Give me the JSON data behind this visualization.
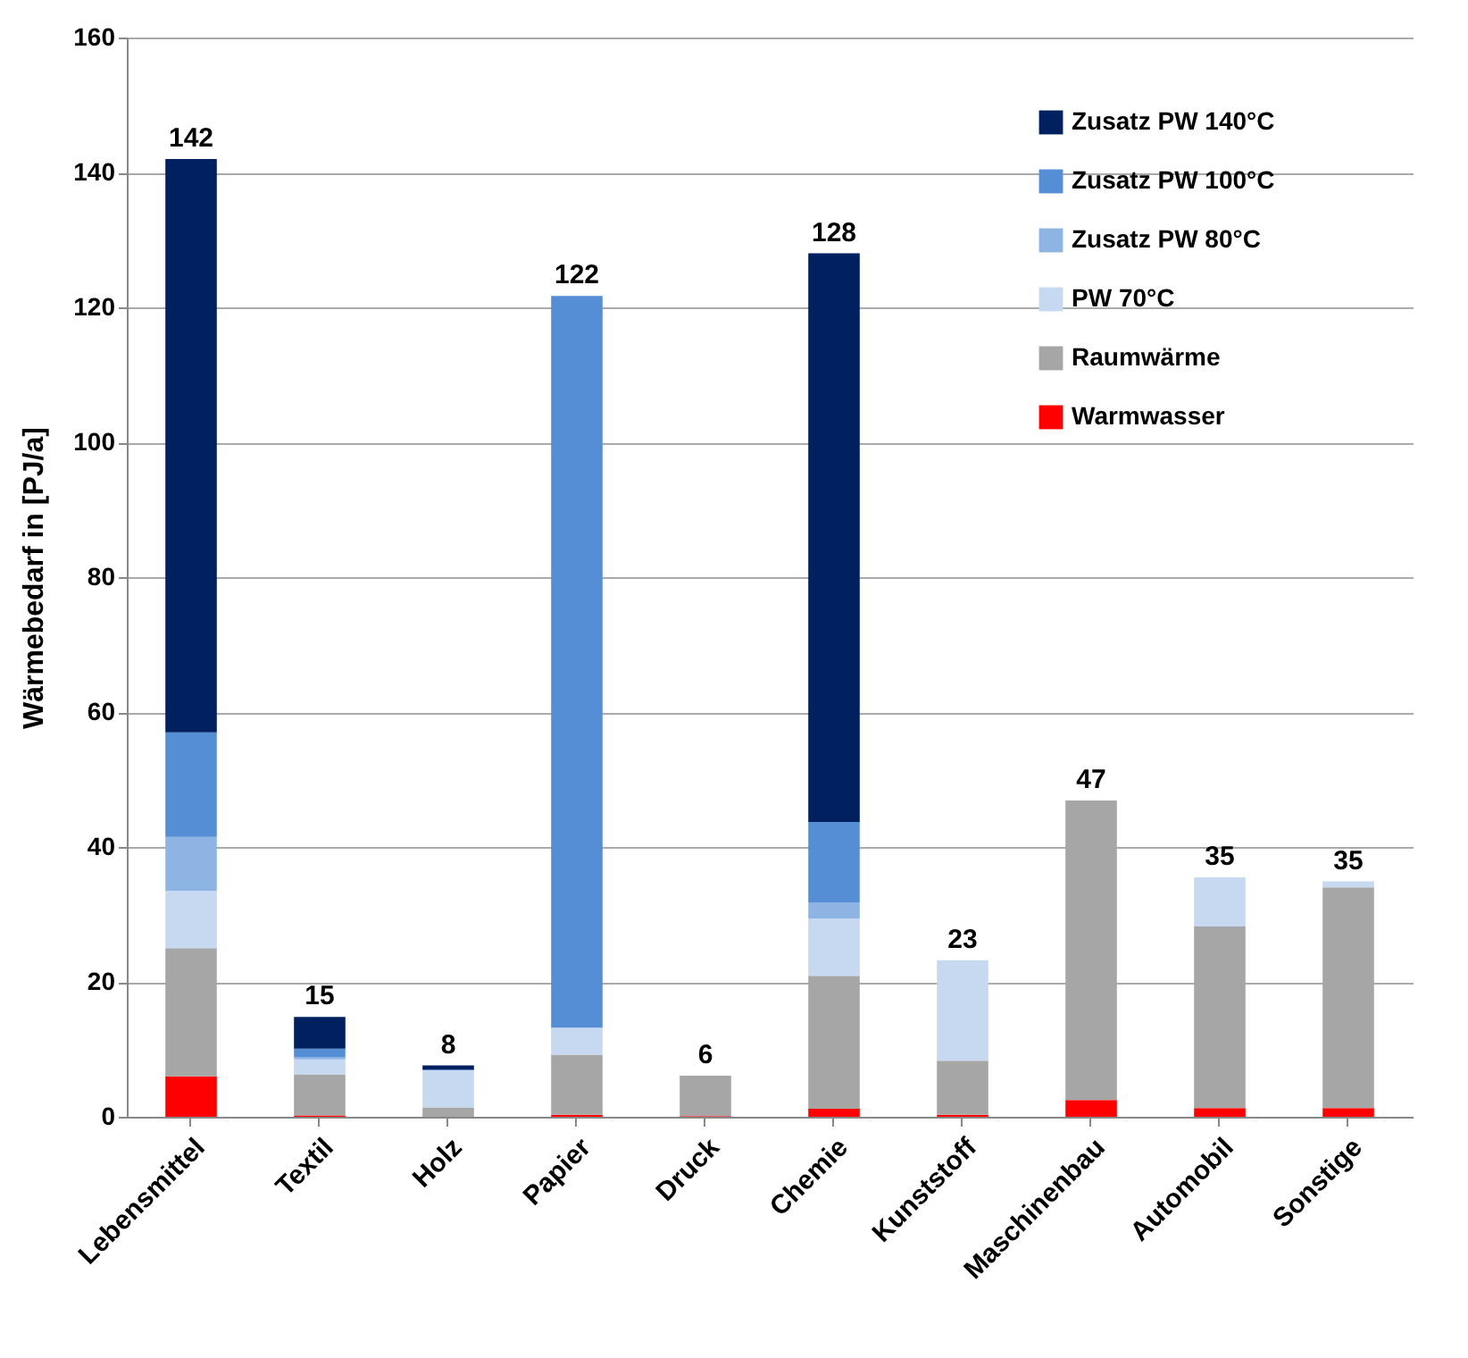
{
  "chart_data": {
    "type": "bar",
    "stacked": true,
    "ylabel": "Wärmebedarf  in [PJ/a]",
    "categories": [
      "Lebensmittel",
      "Textil",
      "Holz",
      "Papier",
      "Druck",
      "Chemie",
      "Kunststoff",
      "Maschinenbau",
      "Automobil",
      "Sonstige"
    ],
    "series": [
      {
        "name": "Warmwasser",
        "color": "#ff0000",
        "values": [
          6,
          0.2,
          0,
          0.3,
          0.1,
          1.2,
          0.3,
          2.5,
          1.3,
          1.3
        ]
      },
      {
        "name": "Raumwärme",
        "color": "#a6a6a6",
        "values": [
          19,
          6.1,
          1.4,
          8.9,
          6,
          19.7,
          8,
          44.4,
          26.9,
          32.7
        ]
      },
      {
        "name": "PW 70°C",
        "color": "#c6d9f1",
        "values": [
          8.5,
          2.2,
          5.5,
          4,
          0,
          8.5,
          14.9,
          0,
          7.3,
          0.9
        ]
      },
      {
        "name": "Zusatz PW 80°C",
        "color": "#8eb4e3",
        "values": [
          8,
          0.3,
          0,
          0,
          0,
          2.4,
          0,
          0,
          0,
          0
        ]
      },
      {
        "name": "Zusatz PW 100°C",
        "color": "#558ed5",
        "values": [
          15.5,
          1.3,
          0.1,
          108.5,
          0,
          11.9,
          0,
          0,
          0,
          0
        ]
      },
      {
        "name": "Zusatz PW 140°C",
        "color": "#002060",
        "values": [
          85,
          4.7,
          0.6,
          0,
          0,
          84.3,
          0,
          0,
          0,
          0
        ]
      }
    ],
    "totals": [
      "142",
      "15",
      "8",
      "122",
      "6",
      "128",
      "23",
      "47",
      "35",
      "35"
    ],
    "ylim": [
      0,
      160
    ],
    "yticks": [
      0,
      20,
      40,
      60,
      80,
      100,
      120,
      140,
      160
    ],
    "grid": "y",
    "legend": "top right"
  }
}
